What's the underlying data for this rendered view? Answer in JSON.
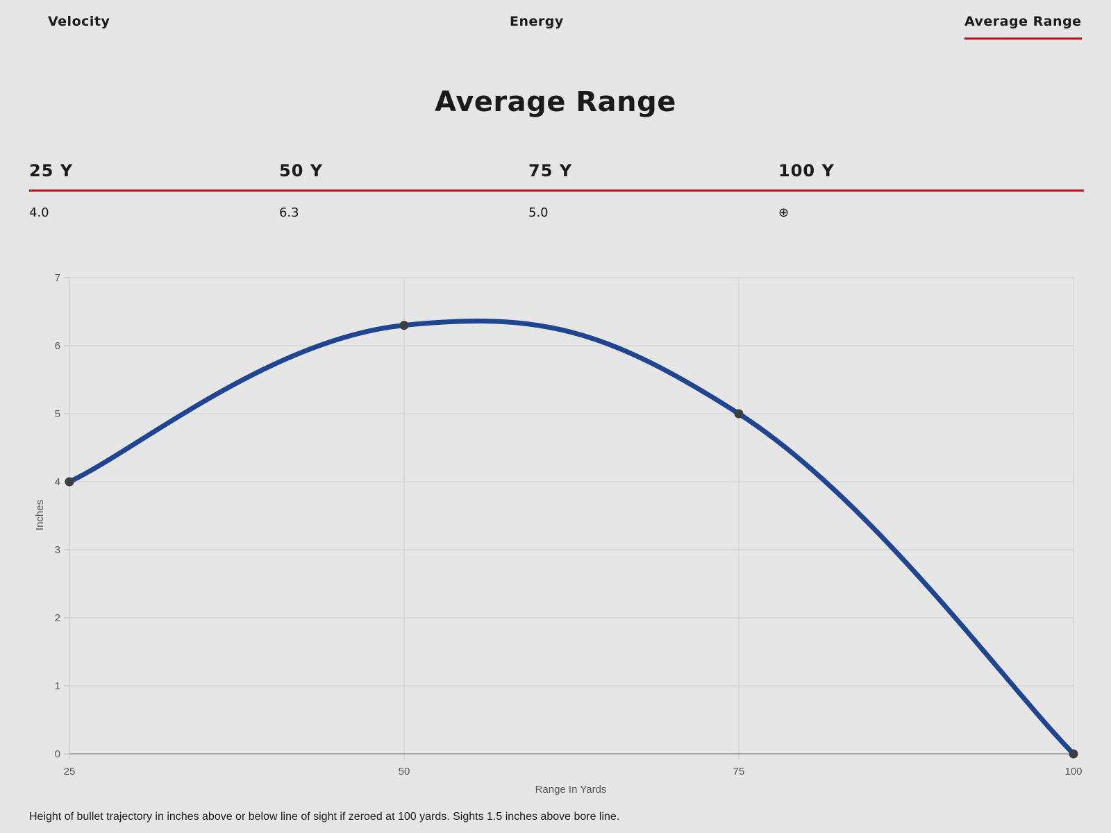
{
  "tabs": {
    "velocity": "Velocity",
    "energy": "Energy",
    "average_range": "Average Range"
  },
  "page_title": "Average Range",
  "range_table": {
    "headers": [
      "25 Y",
      "50 Y",
      "75 Y",
      "100 Y"
    ],
    "values": [
      "4.0",
      "6.3",
      "5.0",
      "⊕"
    ]
  },
  "colors": {
    "accent": "#b5121b",
    "line": "#1f4591",
    "point": "#3a3d44"
  },
  "chart_data": {
    "type": "line",
    "x": [
      25,
      50,
      75,
      100
    ],
    "series": [
      {
        "values": [
          4.0,
          6.3,
          5.0,
          0
        ]
      }
    ],
    "xlabel": "Range In Yards",
    "ylabel": "Inches",
    "xlim": [
      25,
      100
    ],
    "ylim": [
      0,
      7
    ],
    "x_ticks": [
      "25",
      "50",
      "75",
      "100"
    ],
    "y_ticks": [
      "0",
      "1",
      "2",
      "3",
      "4",
      "5",
      "6",
      "7"
    ],
    "grid": true,
    "smooth": true
  },
  "footnote": "Height of bullet trajectory in inches above or below line of sight if zeroed at 100 yards. Sights 1.5 inches above bore line."
}
